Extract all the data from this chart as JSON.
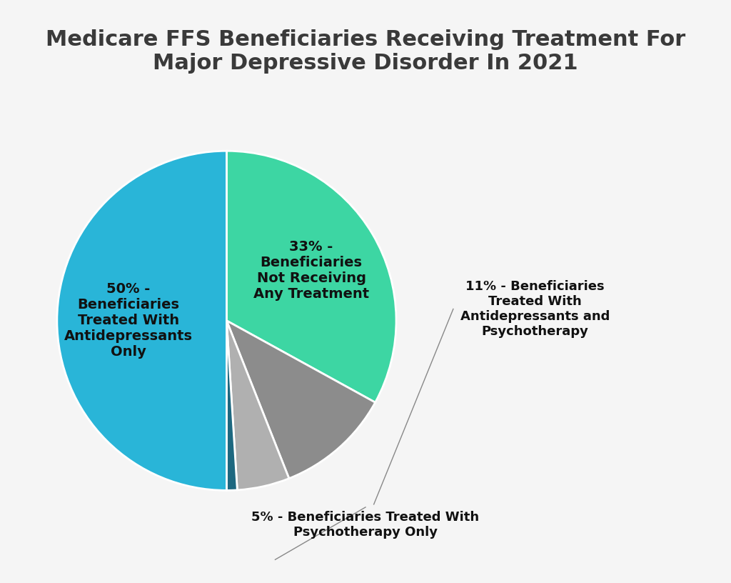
{
  "title": "Medicare FFS Beneficiaries Receiving Treatment For\nMajor Depressive Disorder In 2021",
  "title_fontsize": 22,
  "title_fontweight": "bold",
  "title_color": "#3a3a3a",
  "background_color": "#f5f5f5",
  "values": [
    33,
    11,
    5,
    1,
    50
  ],
  "colors": [
    "#3DD6A3",
    "#8C8C8C",
    "#B0B0B0",
    "#1D6880",
    "#29B5D8"
  ],
  "wedge_edge_color": "#ffffff",
  "wedge_linewidth": 2,
  "label_fontsize": 14,
  "label_fontweight": "bold",
  "label_color": "#111111",
  "inside_label_33": "33% -\nBeneficiaries\nNot Receiving\nAny Treatment",
  "inside_label_50": "50% -\nBeneficiaries\nTreated With\nAntidepressants\nOnly",
  "outside_label_11": "11% - Beneficiaries\nTreated With\nAntidepressants and\nPsychotherapy",
  "outside_label_5": "5% - Beneficiaries Treated With\nPsychotherapy Only"
}
